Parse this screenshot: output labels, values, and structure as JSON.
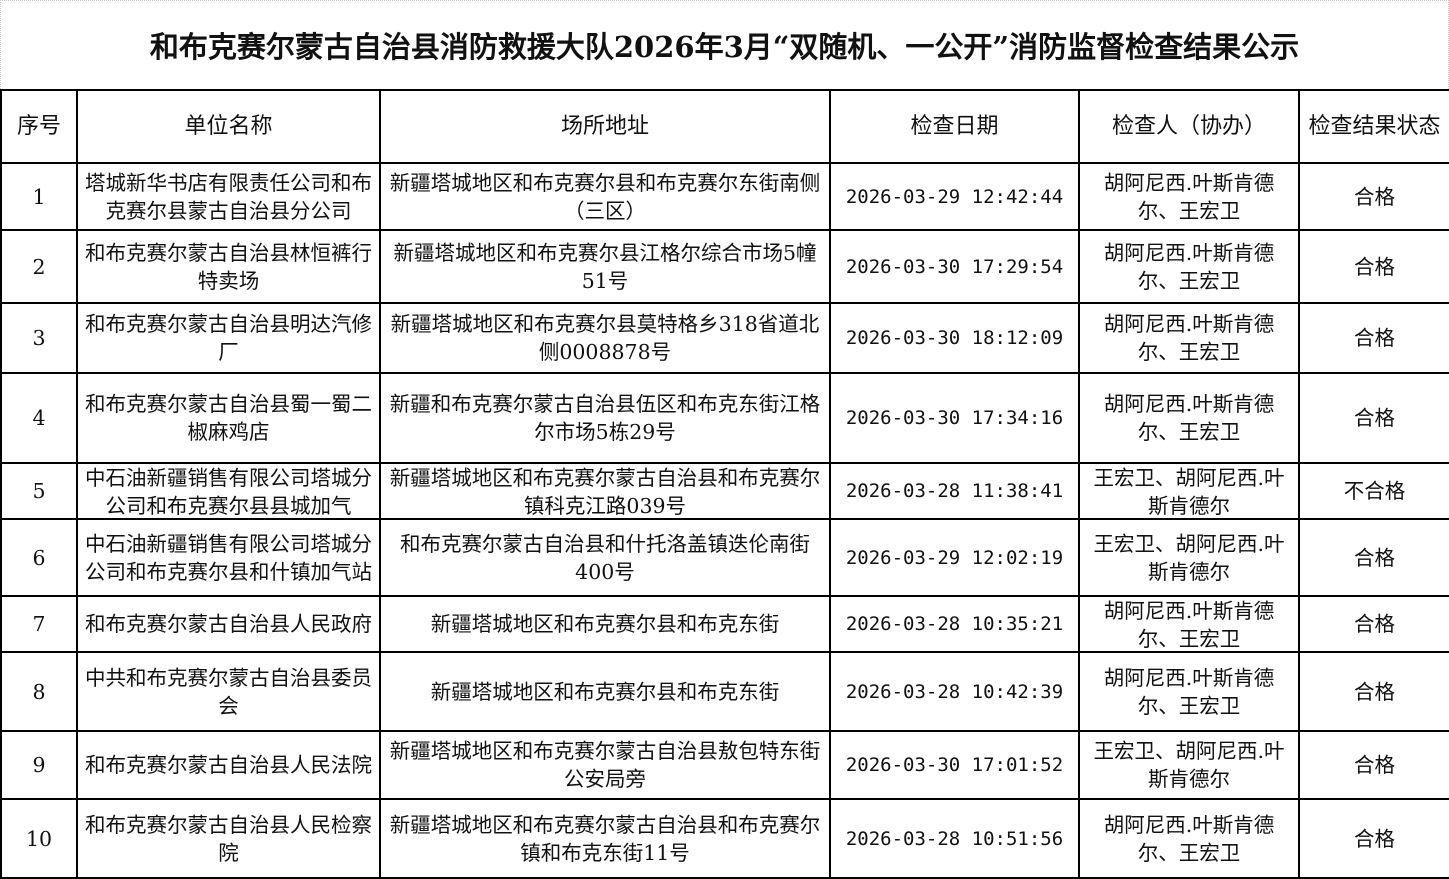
{
  "title": "和布克赛尔蒙古自治县消防救援大队2026年3月“双随机、一公开”消防监督检查结果公示",
  "columns": [
    "序号",
    "单位名称",
    "场所地址",
    "检查日期",
    "检查人（协办）",
    "检查结果状态"
  ],
  "rows": [
    {
      "no": "1",
      "unit": "塔城新华书店有限责任公司和布克赛尔县蒙古自治县分公司",
      "address": "新疆塔城地区和布克赛尔县和布克赛尔东街南侧（三区）",
      "date": "2026-03-29 12:42:44",
      "inspector": "胡阿尼西.叶斯肯德尔、王宏卫",
      "result": "合格"
    },
    {
      "no": "2",
      "unit": "和布克赛尔蒙古自治县林恒裤行特卖场",
      "address": "新疆塔城地区和布克赛尔县江格尔综合市场5幢51号",
      "date": "2026-03-30 17:29:54",
      "inspector": "胡阿尼西.叶斯肯德尔、王宏卫",
      "result": "合格"
    },
    {
      "no": "3",
      "unit": "和布克赛尔蒙古自治县明达汽修厂",
      "address": "新疆塔城地区和布克赛尔县莫特格乡318省道北侧0008878号",
      "date": "2026-03-30 18:12:09",
      "inspector": "胡阿尼西.叶斯肯德尔、王宏卫",
      "result": "合格"
    },
    {
      "no": "4",
      "unit": "和布克赛尔蒙古自治县蜀一蜀二椒麻鸡店",
      "address": "新疆和布克赛尔蒙古自治县伍区和布克东街江格尔市场5栋29号",
      "date": "2026-03-30 17:34:16",
      "inspector": "胡阿尼西.叶斯肯德尔、王宏卫",
      "result": "合格"
    },
    {
      "no": "5",
      "unit": "中石油新疆销售有限公司塔城分公司和布克赛尔县县城加气",
      "address": "新疆塔城地区和布克赛尔蒙古自治县和布克赛尔镇科克江路039号",
      "date": "2026-03-28 11:38:41",
      "inspector": "王宏卫、胡阿尼西.叶斯肯德尔",
      "result": "不合格"
    },
    {
      "no": "6",
      "unit": "中石油新疆销售有限公司塔城分公司和布克赛尔县和什镇加气站",
      "address": "和布克赛尔蒙古自治县和什托洛盖镇迭伦南街400号",
      "date": "2026-03-29 12:02:19",
      "inspector": "王宏卫、胡阿尼西.叶斯肯德尔",
      "result": "合格"
    },
    {
      "no": "7",
      "unit": "和布克赛尔蒙古自治县人民政府",
      "address": "新疆塔城地区和布克赛尔县和布克东街",
      "date": "2026-03-28 10:35:21",
      "inspector": "胡阿尼西.叶斯肯德尔、王宏卫",
      "result": "合格"
    },
    {
      "no": "8",
      "unit": "中共和布克赛尔蒙古自治县委员会",
      "address": "新疆塔城地区和布克赛尔县和布克东街",
      "date": "2026-03-28 10:42:39",
      "inspector": "胡阿尼西.叶斯肯德尔、王宏卫",
      "result": "合格"
    },
    {
      "no": "9",
      "unit": "和布克赛尔蒙古自治县人民法院",
      "address": "新疆塔城地区和布克赛尔蒙古自治县敖包特东街公安局旁",
      "date": "2026-03-30 17:01:52",
      "inspector": "王宏卫、胡阿尼西.叶斯肯德尔",
      "result": "合格"
    },
    {
      "no": "10",
      "unit": "和布克赛尔蒙古自治县人民检察院",
      "address": "新疆塔城地区和布克赛尔蒙古自治县和布克赛尔镇和布克东街11号",
      "date": "2026-03-28 10:51:56",
      "inspector": "胡阿尼西.叶斯肯德尔、王宏卫",
      "result": "合格"
    }
  ]
}
